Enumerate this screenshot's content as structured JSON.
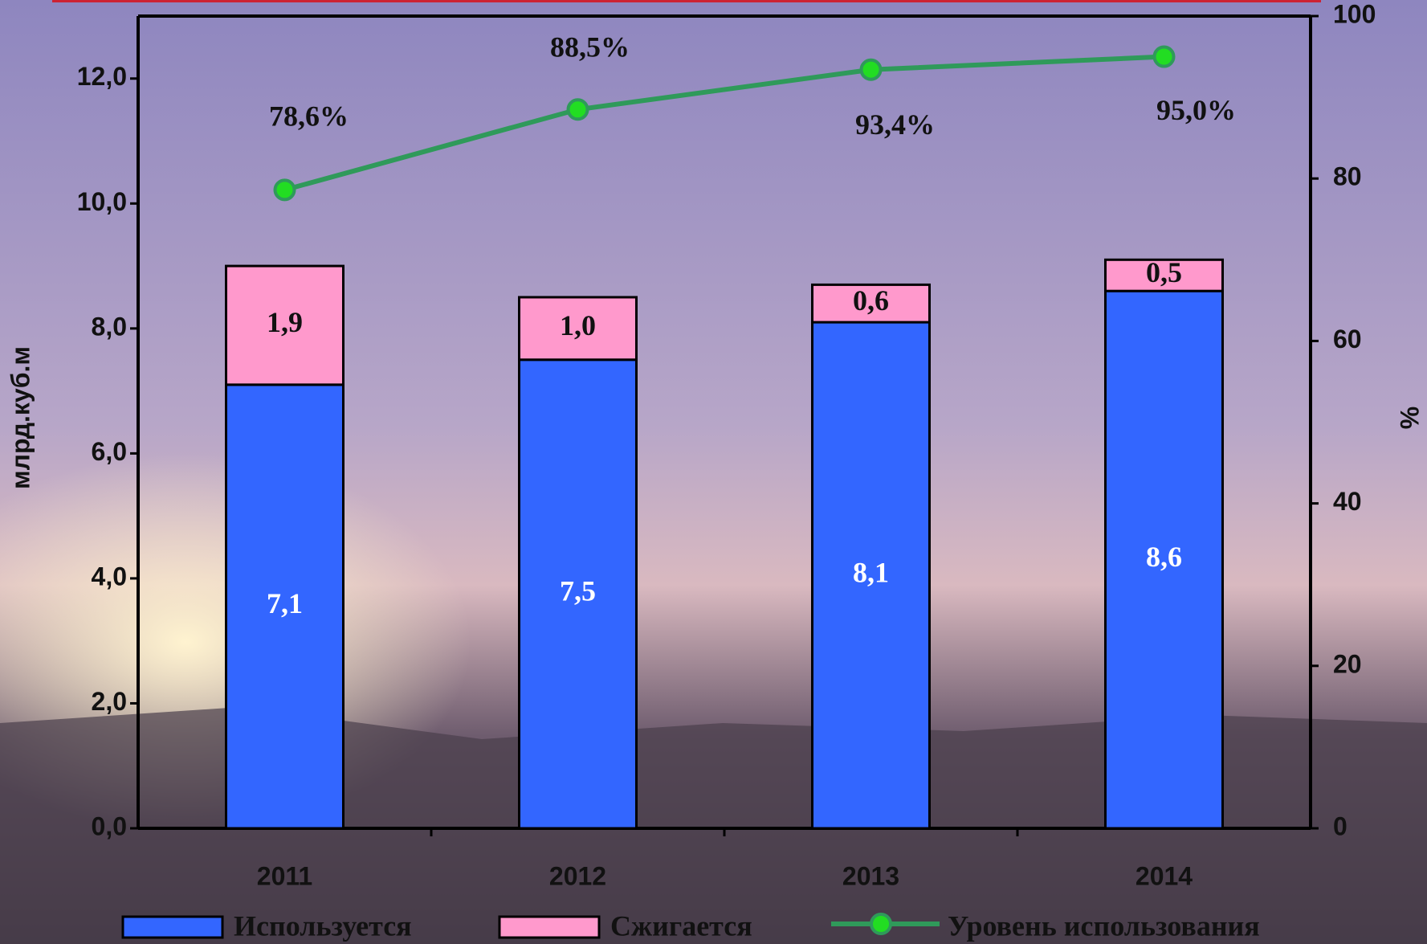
{
  "chart_data": {
    "type": "bar",
    "stacked": true,
    "categories": [
      "2011",
      "2012",
      "2013",
      "2014"
    ],
    "y_label": "млрд.куб.м",
    "y2_label": "%",
    "ylim": [
      0,
      13
    ],
    "yticks": [
      {
        "value": 0,
        "label": "0,0"
      },
      {
        "value": 2,
        "label": "2,0"
      },
      {
        "value": 4,
        "label": "4,0"
      },
      {
        "value": 6,
        "label": "6,0"
      },
      {
        "value": 8,
        "label": "8,0"
      },
      {
        "value": 10,
        "label": "10,0"
      },
      {
        "value": 12,
        "label": "12,0"
      }
    ],
    "y2lim": [
      0,
      100
    ],
    "y2ticks": [
      0,
      20,
      40,
      60,
      80,
      100
    ],
    "series": [
      {
        "name": "Используется",
        "type": "bar",
        "color": "#3366ff",
        "values": [
          7.1,
          7.5,
          8.1,
          8.6
        ],
        "value_labels": [
          "7,1",
          "7,5",
          "8,1",
          "8,6"
        ]
      },
      {
        "name": "Сжигается",
        "type": "bar",
        "color": "#ff99cc",
        "values": [
          1.9,
          1.0,
          0.6,
          0.5
        ],
        "value_labels": [
          "1,9",
          "1,0",
          "0,6",
          "0,5"
        ]
      },
      {
        "name": "Уровень использования",
        "type": "line",
        "axis": "y2",
        "color": "#2f9a5a",
        "marker_color": "#22dd22",
        "values": [
          78.6,
          88.5,
          93.4,
          95.0
        ],
        "value_labels": [
          "78,6%",
          "88,5%",
          "93,4%",
          "95,0%"
        ]
      }
    ]
  }
}
